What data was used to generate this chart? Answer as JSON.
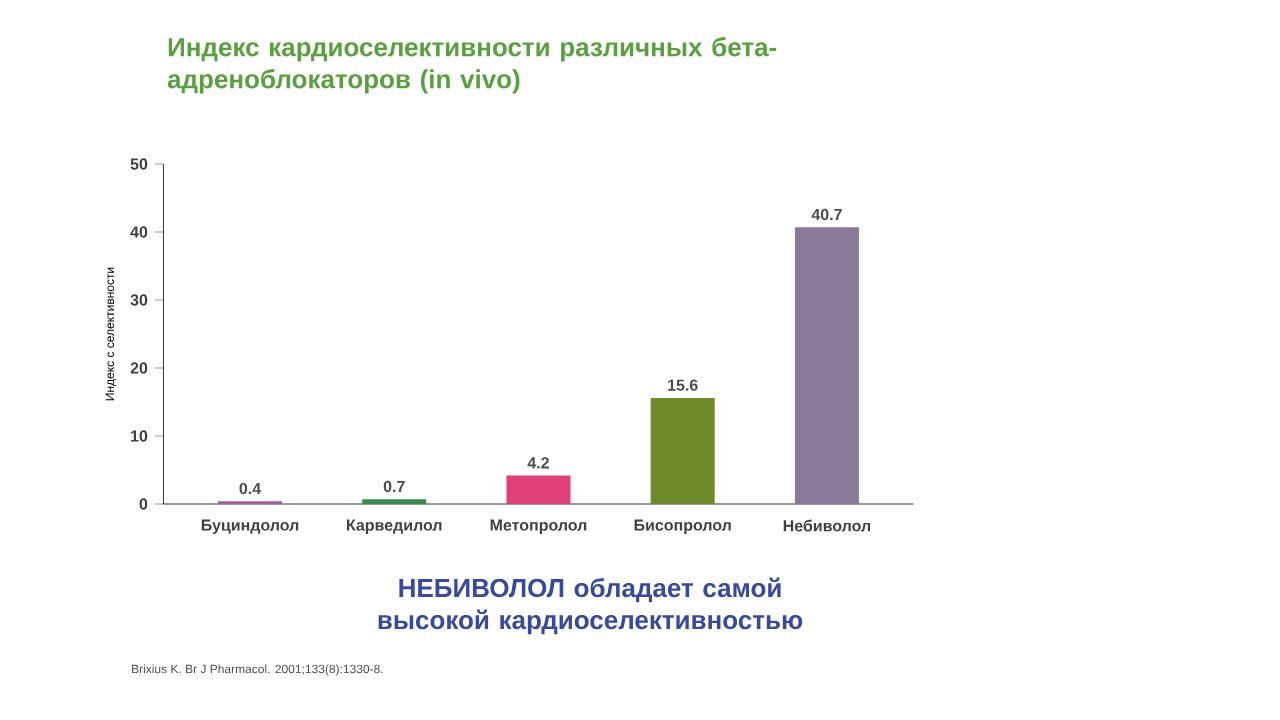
{
  "chart_data": {
    "type": "bar",
    "title": "Индекс кардиоселективности различных бета-адреноблокаторов (in vivo)",
    "ylabel": "Индекс с селективности",
    "categories": [
      "Буциндолол",
      "Карведилол",
      "Метопролол",
      "Бисопролол",
      "Небиволол"
    ],
    "values": [
      0.4,
      0.7,
      4.2,
      15.6,
      40.7
    ],
    "colors": [
      "#a0609a",
      "#3a8a4a",
      "#e0407a",
      "#6e8a2a",
      "#8a7a9a"
    ],
    "ylim": [
      0,
      50
    ],
    "yticks": [
      0,
      10,
      20,
      30,
      40,
      50
    ],
    "data_labels": true,
    "annotations": [
      "НЕБИВОЛОЛ обладает самой высокой кардиоселективностью",
      "Brixius K. Br J Pharmacol. 2001;133(8):1330-8."
    ]
  }
}
